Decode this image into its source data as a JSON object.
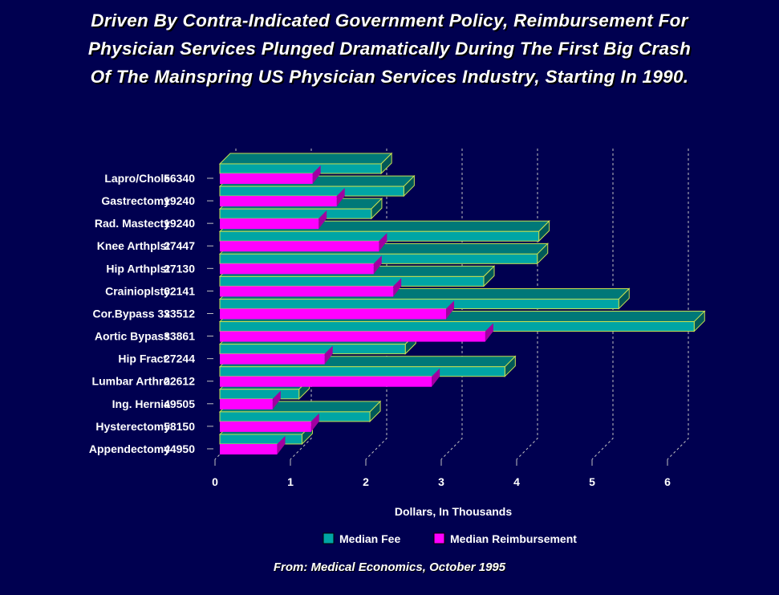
{
  "title_lines": [
    "Driven By Contra-Indicated Government Policy, Reimbursement For",
    "Physician Services Plunged Dramatically During The First Big Crash",
    "Of The Mainspring US Physician Services Industry, Starting In 1990."
  ],
  "source": "From: Medical Economics, October 1995",
  "colors": {
    "background": "#000050",
    "median_fee": "#00a5a5",
    "median_reimbursement": "#ff00ff",
    "outline": "#c8e050"
  },
  "chart_data": {
    "type": "bar",
    "orientation": "horizontal",
    "three_d": true,
    "categories": [
      {
        "name": "Lapro/Chole",
        "code": "56340"
      },
      {
        "name": "Gastrectomy",
        "code": "19240"
      },
      {
        "name": "Rad. Mastecty",
        "code": "19240"
      },
      {
        "name": "Knee Arthplst",
        "code": "27447"
      },
      {
        "name": "Hip Arthplst",
        "code": "27130"
      },
      {
        "name": "Crainioplsty",
        "code": "62141"
      },
      {
        "name": "Cor.Bypass 3x",
        "code": "33512"
      },
      {
        "name": "Aortic Bypass",
        "code": "33861"
      },
      {
        "name": "Hip Fract.",
        "code": "27244"
      },
      {
        "name": "Lumbar Arthro",
        "code": "22612"
      },
      {
        "name": "Ing. Hernia",
        "code": "49505"
      },
      {
        "name": "Hysterectomy",
        "code": "58150"
      },
      {
        "name": "Appendectomy",
        "code": "44950"
      }
    ],
    "series": [
      {
        "name": "Median Fee",
        "values": [
          2.14,
          2.44,
          2.01,
          4.23,
          4.21,
          3.5,
          5.29,
          6.29,
          2.46,
          3.78,
          1.05,
          1.99,
          1.09
        ]
      },
      {
        "name": "Median Reimbursement",
        "values": [
          1.23,
          1.55,
          1.31,
          2.11,
          2.04,
          2.3,
          3.0,
          3.52,
          1.39,
          2.81,
          0.7,
          1.21,
          0.76
        ]
      }
    ],
    "xlabel": "Dollars, In Thousands",
    "xlim": [
      0,
      6
    ],
    "xticks": [
      "0",
      "1",
      "2",
      "3",
      "4",
      "5",
      "6"
    ],
    "grid": true,
    "legend": "bottom"
  }
}
